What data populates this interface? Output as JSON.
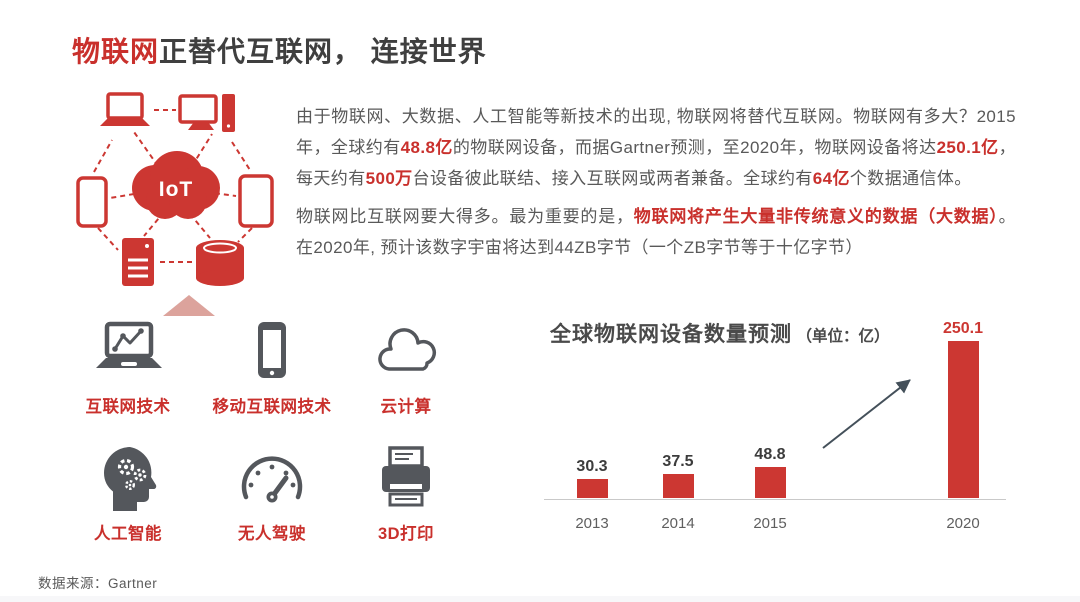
{
  "title": {
    "highlight": "物联网",
    "rest": "正替代互联网， 连接世界"
  },
  "paragraphs": [
    {
      "segments": [
        {
          "text": "由于物联网、大数据、人工智能等新技术的出现, 物联网将替代互联网。物联网有多大？2015年，全球约有"
        },
        {
          "text": "48.8亿"
        },
        {
          "text": "的物联网设备，而据Gartner预测，至2020年，物联网设备将达"
        },
        {
          "text": "250.1亿"
        },
        {
          "text": "，每天约有"
        },
        {
          "text": "500万"
        },
        {
          "text": "台设备彼此联结、接入互联网或两者兼备。全球约有"
        },
        {
          "text": "64亿"
        },
        {
          "text": "个数据通信体。"
        }
      ]
    },
    {
      "segments": [
        {
          "text": "物联网比互联网要大得多。最为重要的是，"
        },
        {
          "text": "物联网将产生大量非传统意义的数据（大数据）"
        },
        {
          "text": "。在2020年, 预计该数字宇宙将达到44ZB字节（一个ZB字节等于十亿字节）"
        }
      ]
    }
  ],
  "iot_diagram": {
    "cloud_label": "IoT",
    "devices": [
      "laptop",
      "desktop-computer",
      "smartphone",
      "tablet",
      "server",
      "database"
    ]
  },
  "tech_icons": [
    {
      "icon": "laptop-chart-icon",
      "label": "互联网技术"
    },
    {
      "icon": "smartphone-icon",
      "label": "移动互联网技术"
    },
    {
      "icon": "cloud-icon",
      "label": "云计算"
    },
    {
      "icon": "ai-head-icon",
      "label": "人工智能"
    },
    {
      "icon": "speedometer-icon",
      "label": "无人驾驶"
    },
    {
      "icon": "printer-3d-icon",
      "label": "3D打印"
    }
  ],
  "chart_data": {
    "type": "bar",
    "title": "全球物联网设备数量预测",
    "unit_label": "（单位：亿）",
    "categories": [
      "2013",
      "2014",
      "2015",
      "2020"
    ],
    "values": [
      30.3,
      37.5,
      48.8,
      250.1
    ],
    "value_labels": [
      "30.3",
      "37.5",
      "48.8",
      "250.1"
    ],
    "ylim": [
      0,
      260
    ],
    "grid": false,
    "legend": "none",
    "bar_color": "#cc3732",
    "annotation": "upward arrow from 2015 bar toward 2020 bar"
  },
  "source": "数据来源：Gartner",
  "colors": {
    "accent_red": "#c9302c",
    "bar_red": "#cc3732",
    "title_dark": "#3f3f3f",
    "body_gray": "#595959",
    "icon_gray": "#54575c",
    "triangle_pink": "#dca39c"
  }
}
